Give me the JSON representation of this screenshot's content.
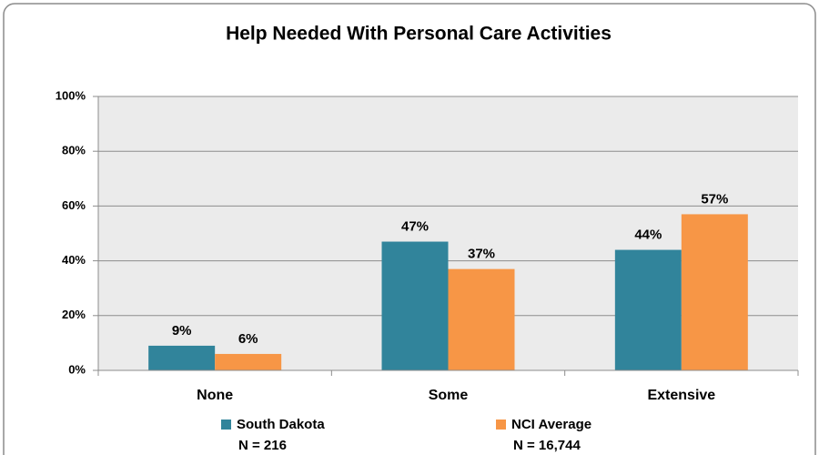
{
  "chart_data": {
    "type": "bar",
    "title": "Help Needed With Personal Care Activities",
    "categories": [
      "None",
      "Some",
      "Extensive"
    ],
    "series": [
      {
        "name": "South Dakota",
        "note": "N = 216",
        "color": "#31849b",
        "values": [
          9,
          47,
          44
        ],
        "value_labels": [
          "9%",
          "47%",
          "44%"
        ]
      },
      {
        "name": "NCI Average",
        "note": "N = 16,744",
        "color": "#f79646",
        "values": [
          6,
          37,
          57
        ],
        "value_labels": [
          "6%",
          "37%",
          "57%"
        ]
      }
    ],
    "ylim": [
      0,
      100
    ],
    "yticks": [
      {
        "value": 0,
        "label": "0%"
      },
      {
        "value": 20,
        "label": "20%"
      },
      {
        "value": 40,
        "label": "40%"
      },
      {
        "value": 60,
        "label": "60%"
      },
      {
        "value": 80,
        "label": "80%"
      },
      {
        "value": 100,
        "label": "100%"
      }
    ],
    "grid": true,
    "legend": "bottom"
  }
}
